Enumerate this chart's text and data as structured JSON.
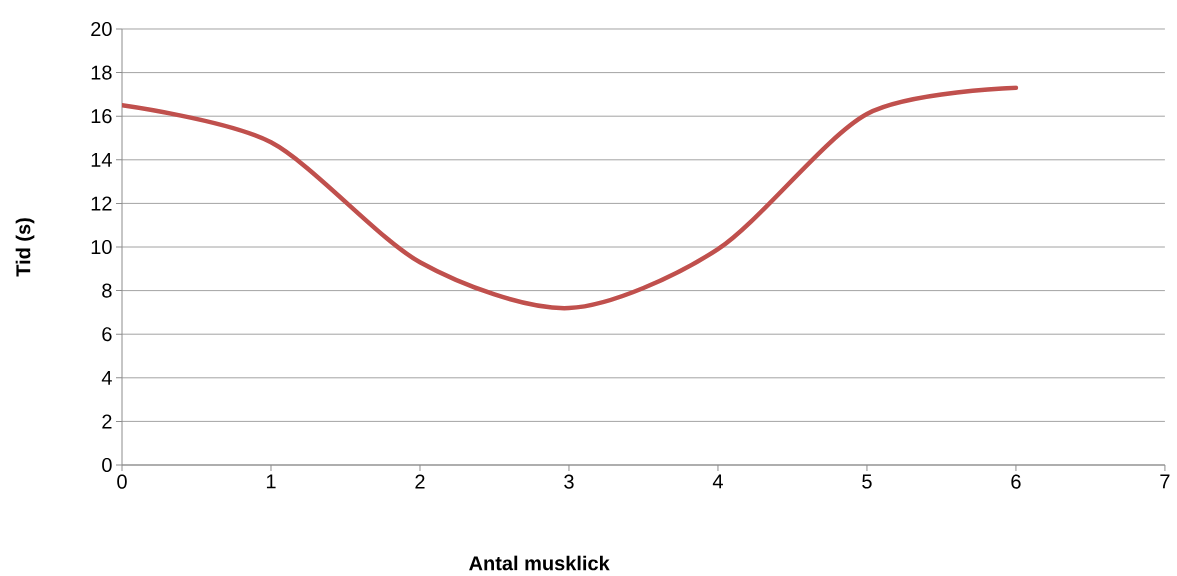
{
  "chart_data": {
    "type": "line",
    "xlabel": "Antal musklick",
    "ylabel": "Tid (s)",
    "x": [
      0,
      1,
      2,
      3,
      4,
      5,
      6
    ],
    "series": [
      {
        "color": "#c0504d",
        "values": [
          16.5,
          14.8,
          9.3,
          7.2,
          9.9,
          16.1,
          17.3
        ]
      }
    ],
    "xlim": [
      0,
      7
    ],
    "ylim": [
      0,
      20
    ],
    "xticks": [
      0,
      1,
      2,
      3,
      4,
      5,
      6,
      7
    ],
    "yticks": [
      0,
      2,
      4,
      6,
      8,
      10,
      12,
      14,
      16,
      18,
      20
    ],
    "grid": "y",
    "marker": "none",
    "line_style": "solid"
  }
}
